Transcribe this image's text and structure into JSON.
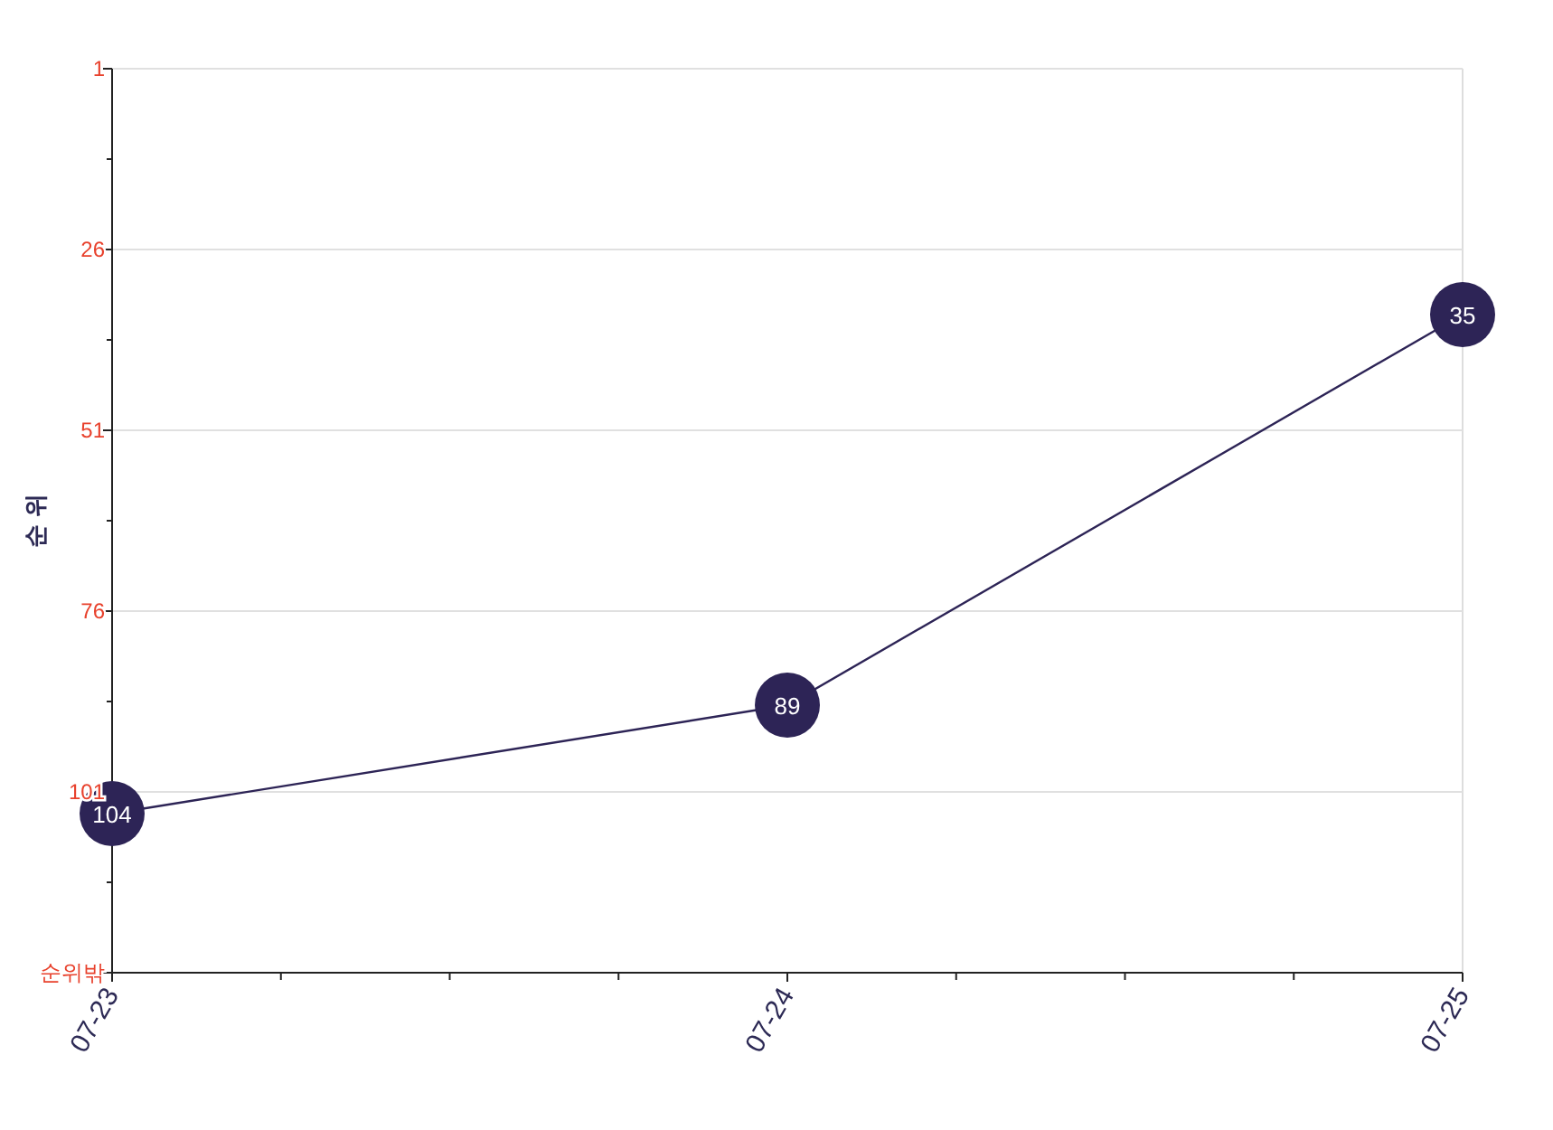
{
  "chart_data": {
    "type": "line",
    "ylabel": "순 위",
    "categories": [
      "07-23",
      "07-24",
      "07-25"
    ],
    "series": [
      {
        "color": "#2d2456",
        "values": [
          104,
          89,
          35
        ]
      }
    ],
    "ylim": [
      126,
      1
    ],
    "yticks": [
      1,
      26,
      51,
      76,
      101,
      {
        "value": 126,
        "label": "순위밖"
      }
    ],
    "grid": "y",
    "marker": "circle",
    "line_style": "solid",
    "data_labels": true
  }
}
